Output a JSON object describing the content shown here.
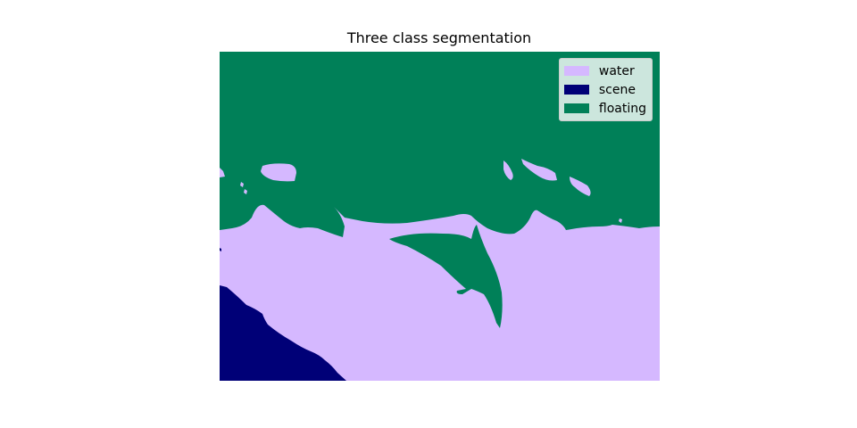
{
  "title": "Three class segmentation",
  "legend": [
    {
      "label": "water",
      "color": "#d5b8ff"
    },
    {
      "label": "scene",
      "color": "#000077"
    },
    {
      "label": "floating",
      "color": "#008058"
    }
  ],
  "colors": {
    "water": "#d5b8ff",
    "scene": "#000077",
    "floating": "#008058"
  }
}
